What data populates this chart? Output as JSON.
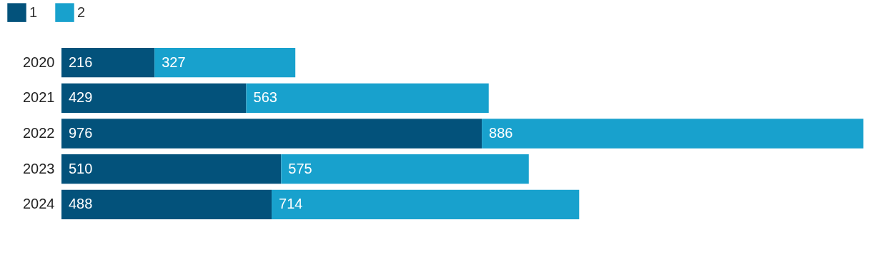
{
  "chart_data": {
    "type": "bar",
    "orientation": "horizontal",
    "stacked": true,
    "data_labels": true,
    "legend": "top left",
    "categories": [
      "2020",
      "2021",
      "2022",
      "2023",
      "2024"
    ],
    "series": [
      {
        "name": "1",
        "color": "#03527b",
        "values": [
          216,
          429,
          976,
          510,
          488
        ]
      },
      {
        "name": "2",
        "color": "#18a1cd",
        "values": [
          327,
          563,
          886,
          575,
          714
        ]
      }
    ]
  }
}
